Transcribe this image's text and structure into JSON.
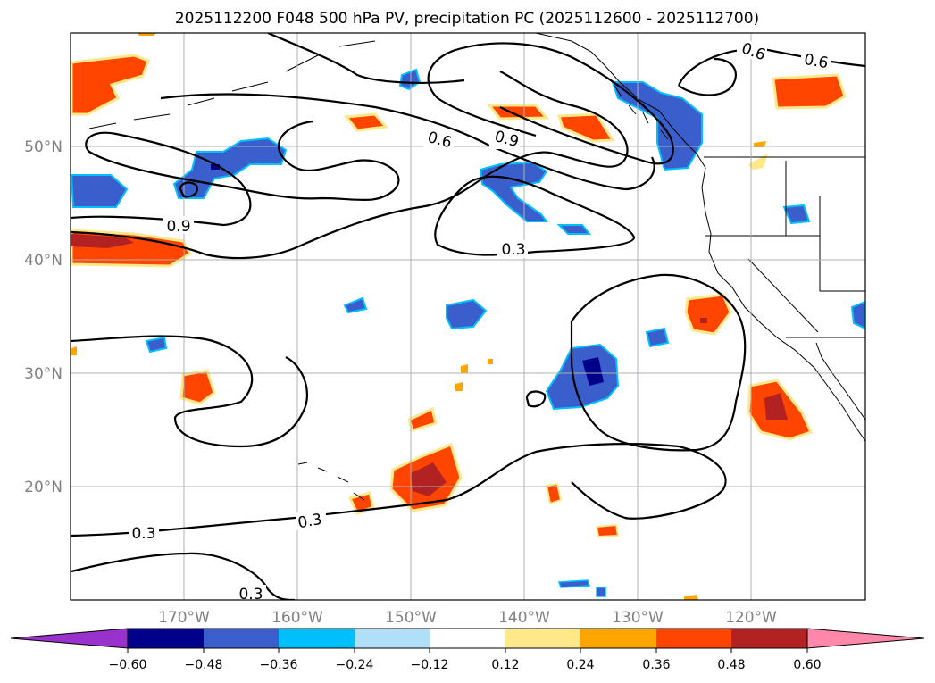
{
  "title": "2025112200 F048 500 hPa PV, precipitation PC (2025112600 - 2025112700)",
  "map": {
    "lon_range": [
      -180,
      -110
    ],
    "lat_range": [
      10,
      60
    ],
    "lon_gridlines": [
      -170,
      -160,
      -150,
      -140,
      -130,
      -120
    ],
    "lat_gridlines": [
      20,
      30,
      40,
      50
    ]
  },
  "longitude_labels": [
    "170°W",
    "160°W",
    "150°W",
    "140°W",
    "130°W",
    "120°W"
  ],
  "latitude_labels": [
    "50°N",
    "40°N",
    "30°N",
    "20°N"
  ],
  "pv_contour_labels": [
    {
      "text": "0.6",
      "lon": -146,
      "lat": 48.9
    },
    {
      "text": "0.9",
      "lon": -142,
      "lat": 49.4
    },
    {
      "text": "0.6",
      "lon": -120,
      "lat": 58.5
    },
    {
      "text": "0.6",
      "lon": -115.5,
      "lat": 57.9
    },
    {
      "text": "0.9",
      "lon": -170.5,
      "lat": 43.0
    },
    {
      "text": "0.3",
      "lon": -141,
      "lat": 40.9
    },
    {
      "text": "0.3",
      "lon": -157,
      "lat": 17.0
    },
    {
      "text": "0.3",
      "lon": -175.5,
      "lat": 16.0
    },
    {
      "text": "0.3",
      "lon": -166,
      "lat": 10.6
    }
  ],
  "colorbar": {
    "levels": [
      "−0.60",
      "−0.48",
      "−0.36",
      "−0.24",
      "−0.12",
      "0.12",
      "0.24",
      "0.36",
      "0.48",
      "0.60"
    ],
    "under_color": "#9932cc",
    "over_color": "#ff88aa",
    "colors": [
      "#00008b",
      "#3a5fcd",
      "#00bfff",
      "#b0e0f8",
      "#ffffff",
      "#ffe88a",
      "#ffa500",
      "#ff4500",
      "#b22222"
    ]
  }
}
